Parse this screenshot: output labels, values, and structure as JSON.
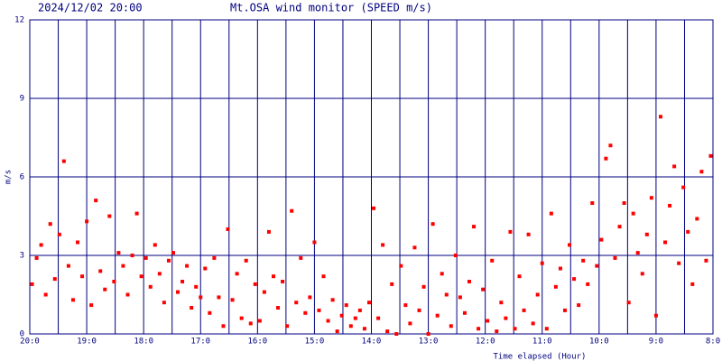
{
  "chart_data": {
    "type": "scatter",
    "title": "Mt.OSA wind monitor (SPEED m/s)",
    "timestamp": "2024/12/02 20:00",
    "x_label": "Time elapsed (Hour)",
    "y_label": "m/s",
    "color": "#ff0000",
    "grid_color": "#000080",
    "grid": true,
    "xlim": [
      0,
      12
    ],
    "ylim": [
      0,
      12
    ],
    "yticks": [
      0,
      3,
      6,
      9,
      12
    ],
    "xticks": [
      {
        "value": 0,
        "label": "20:0"
      },
      {
        "value": 1,
        "label": "19:0"
      },
      {
        "value": 2,
        "label": "18:0"
      },
      {
        "value": 3,
        "label": "17:0"
      },
      {
        "value": 4,
        "label": "16:0"
      },
      {
        "value": 5,
        "label": "15:0"
      },
      {
        "value": 6,
        "label": "14:0"
      },
      {
        "value": 7,
        "label": "13:0"
      },
      {
        "value": 8,
        "label": "12:0"
      },
      {
        "value": 9,
        "label": "11:0"
      },
      {
        "value": 10,
        "label": "10:0"
      },
      {
        "value": 11,
        "label": "9:0"
      },
      {
        "value": 12,
        "label": "8:0"
      }
    ],
    "x_minor_grid": [
      0.5,
      1.5,
      2.5,
      3.5,
      4.5,
      5.5,
      6.5,
      7.5,
      8.5,
      9.5,
      10.5,
      11.5
    ],
    "x": [
      0.04,
      0.12,
      0.2,
      0.28,
      0.36,
      0.44,
      0.52,
      0.6,
      0.68,
      0.76,
      0.84,
      0.92,
      1.0,
      1.08,
      1.16,
      1.24,
      1.32,
      1.4,
      1.48,
      1.56,
      1.64,
      1.72,
      1.8,
      1.88,
      1.96,
      2.04,
      2.12,
      2.2,
      2.28,
      2.36,
      2.44,
      2.52,
      2.6,
      2.68,
      2.76,
      2.84,
      2.92,
      3.0,
      3.08,
      3.16,
      3.24,
      3.32,
      3.4,
      3.48,
      3.56,
      3.64,
      3.72,
      3.8,
      3.88,
      3.96,
      4.04,
      4.12,
      4.2,
      4.28,
      4.36,
      4.44,
      4.52,
      4.6,
      4.68,
      4.76,
      4.84,
      4.92,
      5.0,
      5.08,
      5.16,
      5.24,
      5.32,
      5.4,
      5.48,
      5.56,
      5.64,
      5.72,
      5.8,
      5.88,
      5.96,
      6.04,
      6.12,
      6.2,
      6.28,
      6.36,
      6.44,
      6.52,
      6.6,
      6.68,
      6.76,
      6.84,
      6.92,
      7.0,
      7.08,
      7.16,
      7.24,
      7.32,
      7.4,
      7.48,
      7.56,
      7.64,
      7.72,
      7.8,
      7.88,
      7.96,
      8.04,
      8.12,
      8.2,
      8.28,
      8.36,
      8.44,
      8.52,
      8.6,
      8.68,
      8.76,
      8.84,
      8.92,
      9.0,
      9.08,
      9.16,
      9.24,
      9.32,
      9.4,
      9.48,
      9.56,
      9.64,
      9.72,
      9.8,
      9.88,
      9.96,
      10.04,
      10.12,
      10.2,
      10.28,
      10.36,
      10.44,
      10.52,
      10.6,
      10.68,
      10.76,
      10.84,
      10.92,
      11.0,
      11.08,
      11.16,
      11.24,
      11.32,
      11.4,
      11.48,
      11.56,
      11.64,
      11.72,
      11.8,
      11.88,
      11.96
    ],
    "values": [
      1.9,
      2.9,
      3.4,
      1.5,
      4.2,
      2.1,
      3.8,
      6.6,
      2.6,
      1.3,
      3.5,
      2.2,
      4.3,
      1.1,
      5.1,
      2.4,
      1.7,
      4.5,
      2.0,
      3.1,
      2.6,
      1.5,
      3.0,
      4.6,
      2.2,
      2.9,
      1.8,
      3.4,
      2.3,
      1.2,
      2.8,
      3.1,
      1.6,
      2.0,
      2.6,
      1.0,
      1.8,
      1.4,
      2.5,
      0.8,
      2.9,
      1.4,
      0.3,
      4.0,
      1.3,
      2.3,
      0.6,
      2.8,
      0.4,
      1.9,
      0.5,
      1.6,
      3.9,
      2.2,
      1.0,
      2.0,
      0.3,
      4.7,
      1.2,
      2.9,
      0.8,
      1.4,
      3.5,
      0.9,
      2.2,
      0.5,
      1.3,
      0.1,
      0.7,
      1.1,
      0.3,
      0.6,
      0.9,
      0.2,
      1.2,
      4.8,
      0.6,
      3.4,
      0.1,
      1.9,
      0.0,
      2.6,
      1.1,
      0.4,
      3.3,
      0.9,
      1.8,
      0.0,
      4.2,
      0.7,
      2.3,
      1.5,
      0.3,
      3.0,
      1.4,
      0.8,
      2.0,
      4.1,
      0.2,
      1.7,
      0.5,
      2.8,
      0.1,
      1.2,
      0.6,
      3.9,
      0.2,
      2.2,
      0.9,
      3.8,
      0.4,
      1.5,
      2.7,
      0.2,
      4.6,
      1.8,
      2.5,
      0.9,
      3.4,
      2.1,
      1.1,
      2.8,
      1.9,
      5.0,
      2.6,
      3.6,
      6.7,
      7.2,
      2.9,
      4.1,
      5.0,
      1.2,
      4.6,
      3.1,
      2.3,
      3.8,
      5.2,
      0.7,
      8.3,
      3.5,
      4.9,
      6.4,
      2.7,
      5.6,
      3.9,
      1.9,
      4.4,
      6.2,
      2.8,
      6.8
    ]
  }
}
